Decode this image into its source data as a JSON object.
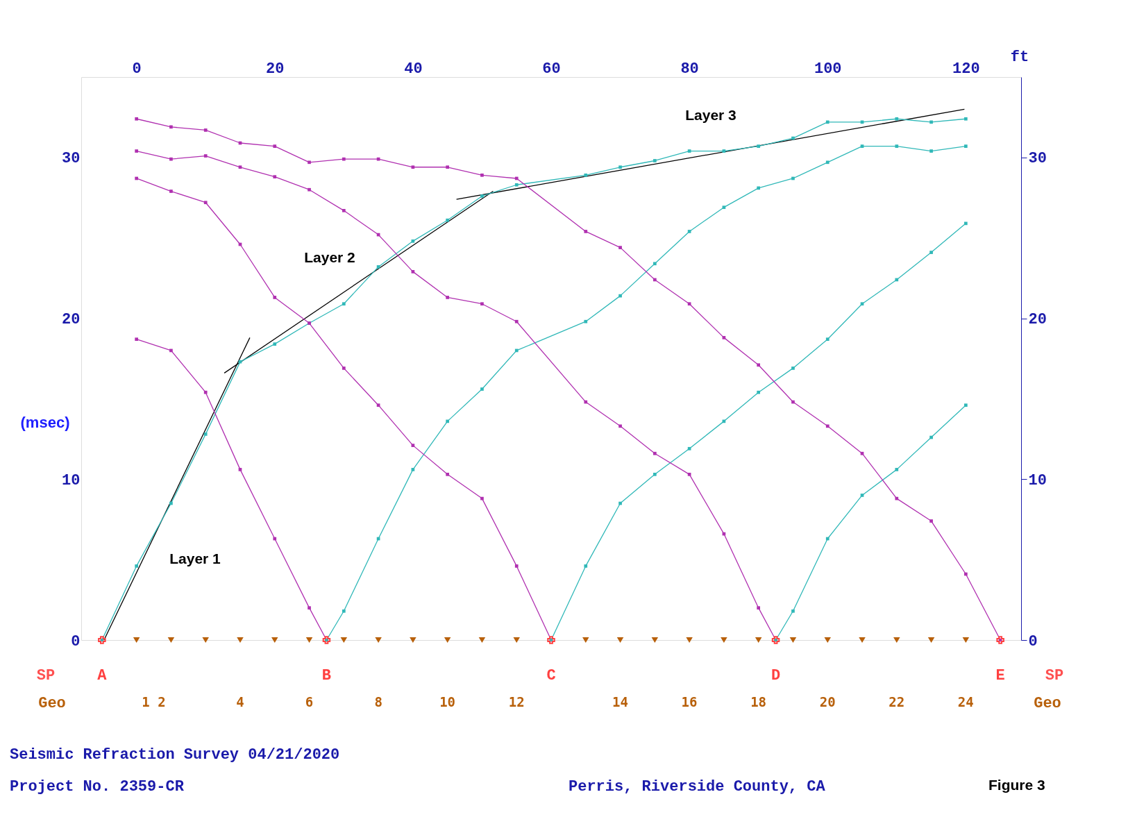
{
  "chart_data": {
    "type": "line",
    "xlabel": "ft",
    "ylabel": "(msec)",
    "xlim": [
      -8,
      128
    ],
    "xticks": [
      0,
      20,
      40,
      60,
      80,
      100,
      120
    ],
    "ylim": [
      0,
      35
    ],
    "yticks": [
      0,
      10,
      20,
      30
    ],
    "y2lim": [
      0,
      35
    ],
    "y2ticks": [
      0,
      10,
      20,
      30
    ],
    "grid": false,
    "marker": "square",
    "line_style": "solid",
    "series": [
      {
        "color": "#30b8b8",
        "x": [
          -5,
          0,
          5,
          10,
          15,
          20,
          25,
          30,
          35,
          40,
          45,
          50,
          55,
          65,
          70,
          75,
          80,
          85,
          90,
          95,
          100,
          105,
          110,
          115,
          120
        ],
        "values": [
          0,
          4.6,
          8.5,
          12.8,
          17.3,
          18.4,
          19.7,
          20.9,
          23.2,
          24.8,
          26.1,
          27.6,
          28.3,
          28.9,
          29.4,
          29.8,
          30.4,
          30.4,
          30.7,
          31.2,
          32.2,
          32.2,
          32.4,
          32.2,
          32.4
        ]
      },
      {
        "color": "#b030b0",
        "x": [
          0,
          5,
          10,
          15,
          20,
          25,
          27.5
        ],
        "values": [
          18.7,
          18.0,
          15.4,
          10.6,
          6.3,
          2.0,
          0
        ]
      },
      {
        "color": "#30b8b8",
        "x": [
          27.5,
          30,
          35,
          40,
          45,
          50,
          55,
          65,
          70,
          75,
          80,
          85,
          90,
          95,
          100,
          105,
          110,
          115,
          120
        ],
        "values": [
          0,
          1.8,
          6.3,
          10.6,
          13.6,
          15.6,
          18.0,
          19.8,
          21.4,
          23.4,
          25.4,
          26.9,
          28.1,
          28.7,
          29.7,
          30.7,
          30.7,
          30.4,
          30.7
        ]
      },
      {
        "color": "#b030b0",
        "x": [
          0,
          5,
          10,
          15,
          20,
          25,
          30,
          35,
          40,
          45,
          50,
          55,
          60
        ],
        "values": [
          28.7,
          27.9,
          27.2,
          24.6,
          21.3,
          19.7,
          16.9,
          14.6,
          12.1,
          10.3,
          8.8,
          4.6,
          0
        ]
      },
      {
        "color": "#30b8b8",
        "x": [
          60,
          65,
          70,
          75,
          80,
          85,
          90,
          95,
          100,
          105,
          110,
          115,
          120
        ],
        "values": [
          0,
          4.6,
          8.5,
          10.3,
          11.9,
          13.6,
          15.4,
          16.9,
          18.7,
          20.9,
          22.4,
          24.1,
          25.9
        ]
      },
      {
        "color": "#b030b0",
        "x": [
          0,
          5,
          10,
          15,
          20,
          25,
          30,
          35,
          40,
          45,
          50,
          55,
          65,
          70,
          75,
          80,
          85,
          90,
          92.5
        ],
        "values": [
          30.4,
          29.9,
          30.1,
          29.4,
          28.8,
          28.0,
          26.7,
          25.2,
          22.9,
          21.3,
          20.9,
          19.8,
          14.8,
          13.3,
          11.6,
          10.3,
          6.6,
          2.0,
          0
        ]
      },
      {
        "color": "#30b8b8",
        "x": [
          92.5,
          95,
          100,
          105,
          110,
          115,
          120
        ],
        "values": [
          0,
          1.8,
          6.3,
          9.0,
          10.6,
          12.6,
          14.6
        ]
      },
      {
        "color": "#b030b0",
        "x": [
          0,
          5,
          10,
          15,
          20,
          25,
          30,
          35,
          40,
          45,
          50,
          55,
          65,
          70,
          75,
          80,
          85,
          90,
          95,
          100,
          105,
          110,
          115,
          120,
          125
        ],
        "values": [
          32.4,
          31.9,
          31.7,
          30.9,
          30.7,
          29.7,
          29.9,
          29.9,
          29.4,
          29.4,
          28.9,
          28.7,
          25.4,
          24.4,
          22.4,
          20.9,
          18.8,
          17.1,
          14.8,
          13.3,
          11.6,
          8.8,
          7.4,
          4.1,
          0
        ]
      },
      {
        "color": "#000000",
        "marker": "none",
        "x": [
          -4.7,
          16.4
        ],
        "values": [
          0,
          18.8
        ]
      },
      {
        "color": "#000000",
        "marker": "none",
        "x": [
          12.7,
          51.6
        ],
        "values": [
          16.6,
          27.9
        ]
      },
      {
        "color": "#000000",
        "marker": "none",
        "x": [
          46.3,
          119.8
        ],
        "values": [
          27.4,
          33.0
        ]
      },
      {
        "type": "scatter",
        "color": "#ff4040",
        "marker": "cross",
        "x": [
          -5,
          27.5,
          60,
          92.5,
          125
        ],
        "values": [
          0,
          0,
          0,
          0,
          0
        ]
      },
      {
        "type": "scatter",
        "color": "#b8600a",
        "marker": "triangle",
        "x": [
          0,
          5,
          10,
          15,
          20,
          25,
          30,
          35,
          40,
          45,
          50,
          55,
          65,
          70,
          75,
          80,
          85,
          90,
          95,
          100,
          105,
          110,
          115,
          120
        ],
        "values": [
          0,
          0,
          0,
          0,
          0,
          0,
          0,
          0,
          0,
          0,
          0,
          0,
          0,
          0,
          0,
          0,
          0,
          0,
          0,
          0,
          0,
          0,
          0,
          0
        ]
      }
    ],
    "annotations": [
      "SP",
      "SP",
      "Geo",
      "Geo",
      "Seismic Refraction Survey   04/21/2020",
      "Project No. 2359-CR",
      "Perris, Riverside County, CA",
      "Figure 3",
      "Layer 1",
      "Layer 2",
      "Layer 3",
      {
        "text": "A",
        "x": -5,
        "y": 0
      },
      {
        "text": "B",
        "x": 27.5,
        "y": 0
      },
      {
        "text": "C",
        "x": 60,
        "y": 0
      },
      {
        "text": "D",
        "x": 92.5,
        "y": 0
      },
      {
        "text": "E",
        "x": 125,
        "y": 0
      },
      "1  2",
      "4",
      "6",
      "8",
      "10",
      "12",
      "14",
      "16",
      "18",
      "20",
      "22",
      "24"
    ]
  }
}
